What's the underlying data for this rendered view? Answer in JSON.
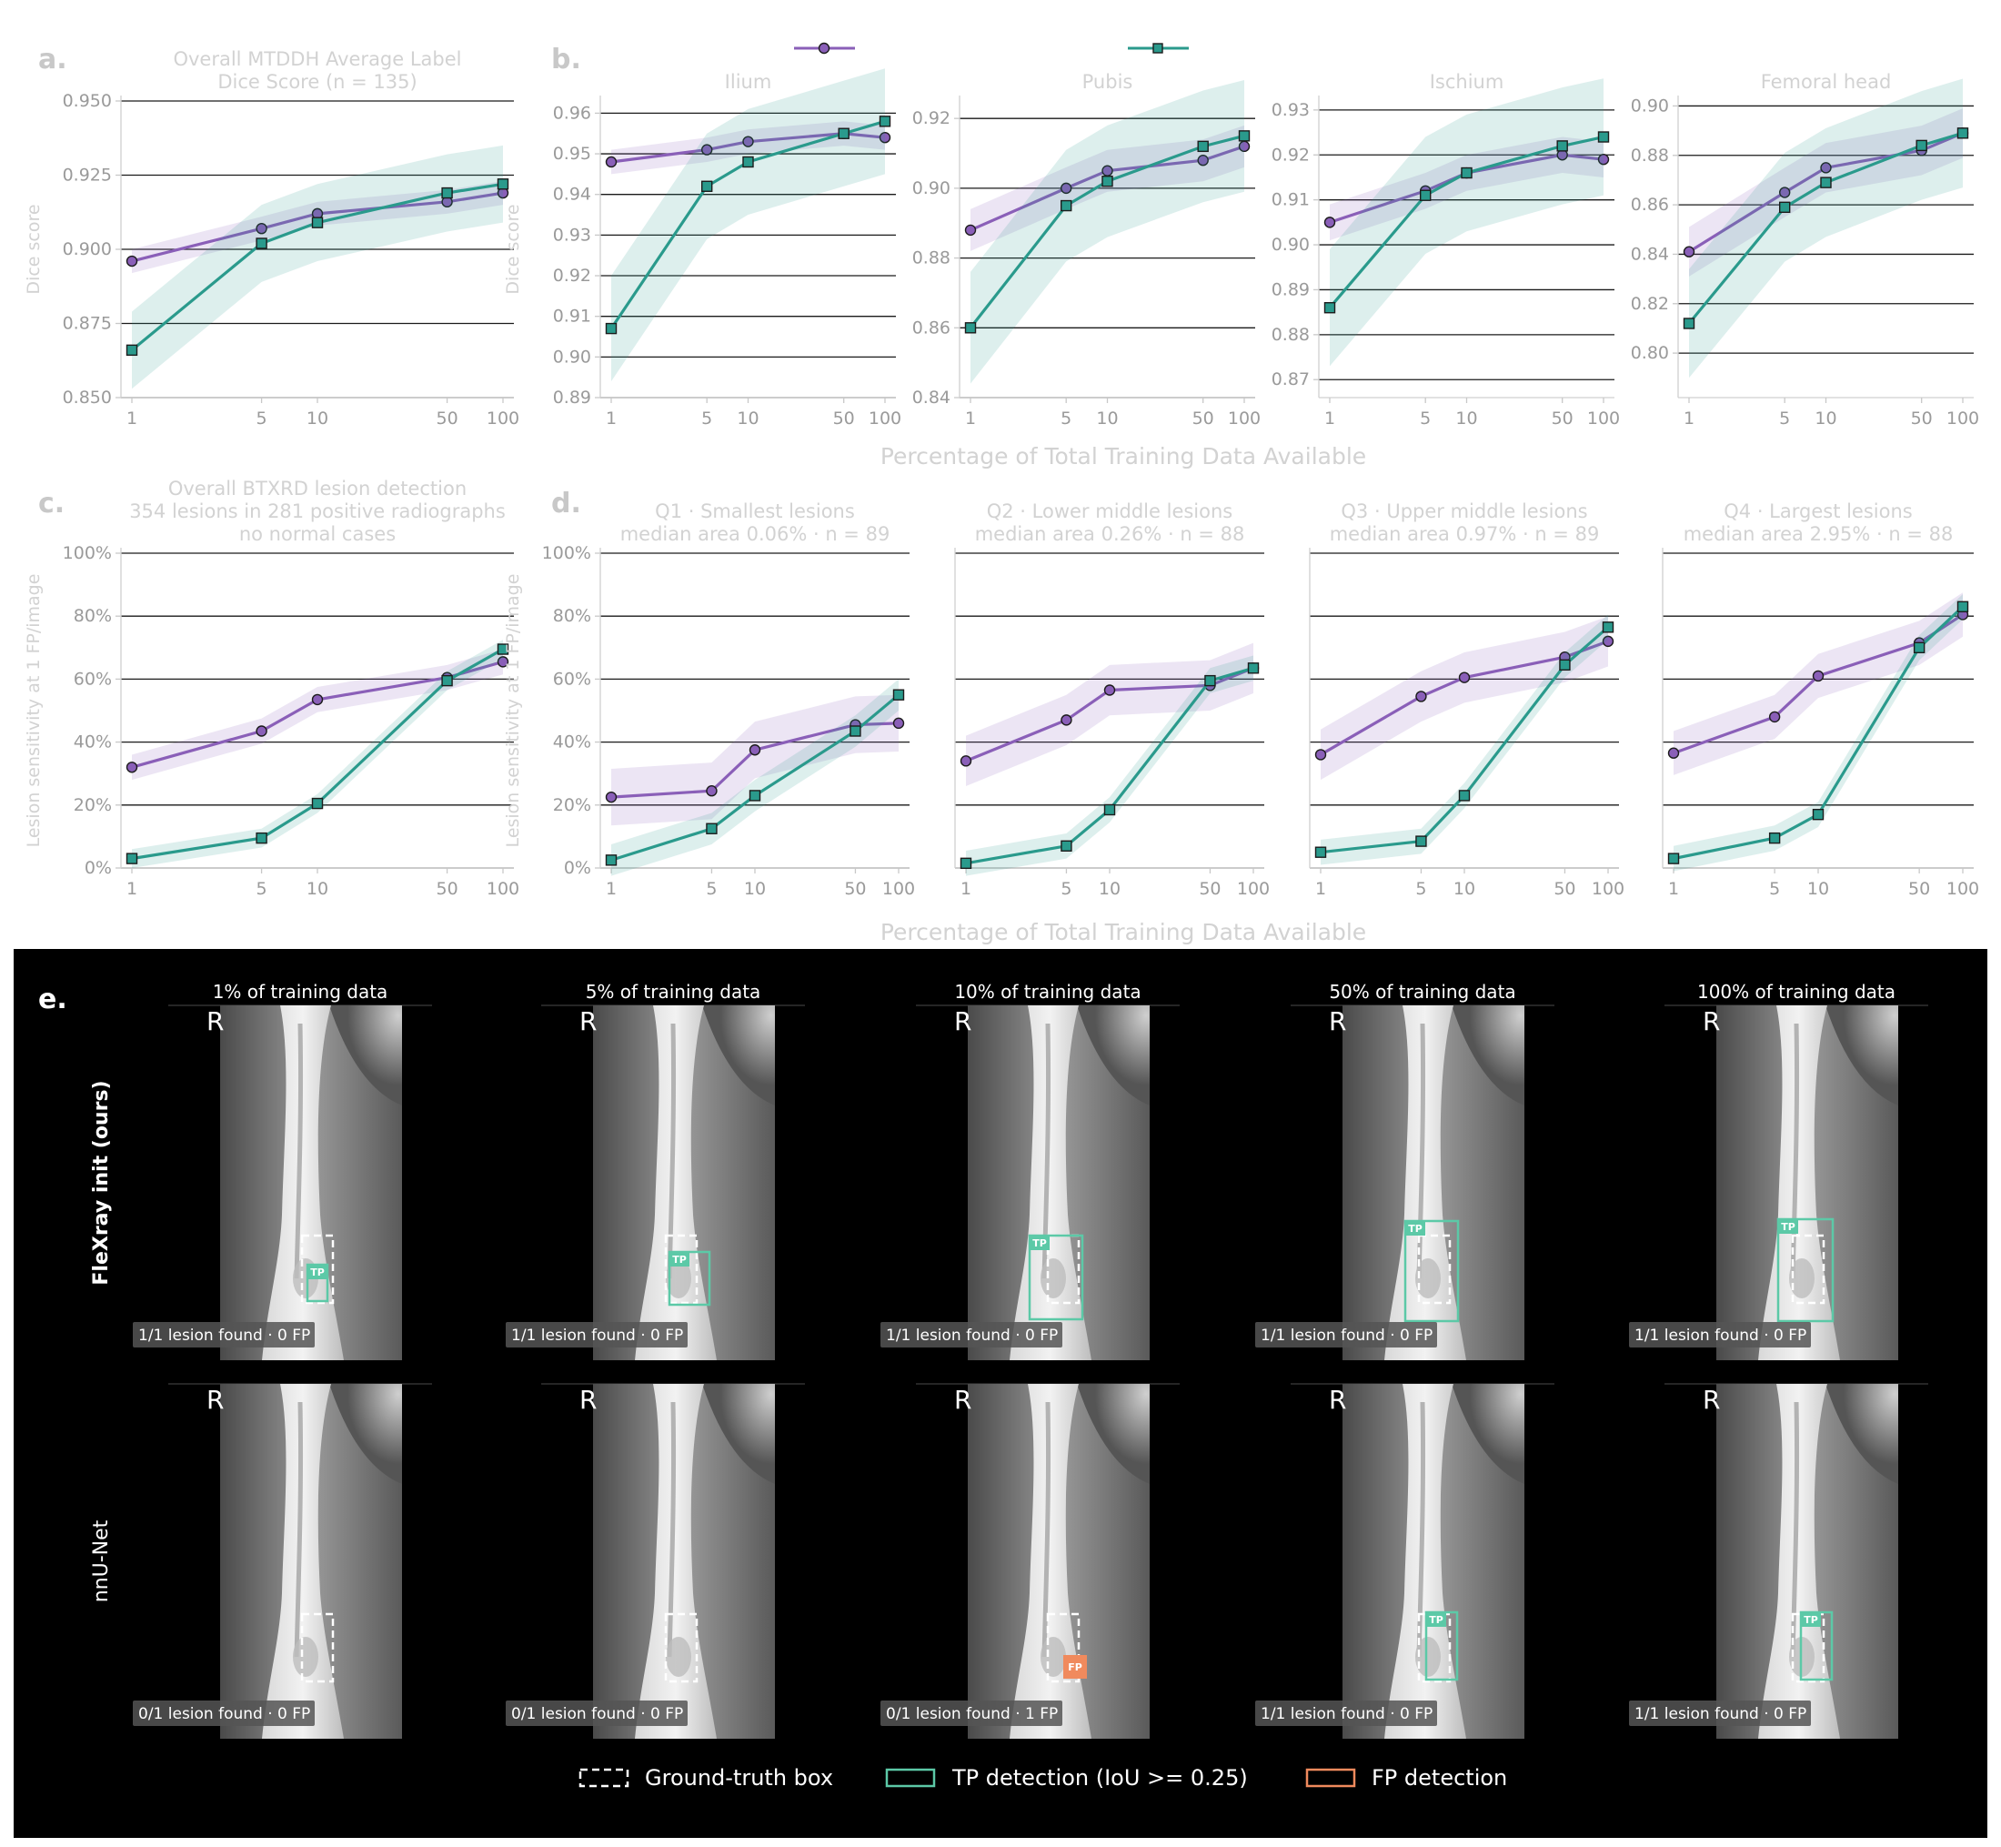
{
  "legend": {
    "series": [
      {
        "key": "flexray",
        "color": "#8a5fb8",
        "marker": "circle"
      },
      {
        "key": "nnunet",
        "color": "#2a9a8c",
        "marker": "square"
      }
    ]
  },
  "panel_letters": {
    "a": "a.",
    "b": "b.",
    "c": "c.",
    "d": "d.",
    "e": "e."
  },
  "x_axis_label_top": "Percentage of Total Training Data Available",
  "x_axis_label_bottom": "Percentage of Total Training Data Available",
  "dice_ylabel": "Dice score",
  "sens_ylabel": "Lesion sensitivity at 1 FP/image",
  "chart_data": [
    {
      "id": "a",
      "type": "line",
      "title": [
        "Overall MTDDH Average Label",
        "Dice Score (n = 135)"
      ],
      "ylabel": "Dice score",
      "x": [
        1,
        5,
        10,
        50,
        100
      ],
      "xscale": "log",
      "ylim": [
        0.85,
        0.95
      ],
      "yticks": [
        0.85,
        0.875,
        0.9,
        0.925,
        0.95
      ],
      "yticklabels": [
        "0.850",
        "0.875",
        "0.900",
        "0.925",
        "0.950"
      ],
      "grid": "y",
      "series": [
        {
          "values": [
            0.896,
            0.907,
            0.912,
            0.916,
            0.919
          ],
          "band": 0.004
        },
        {
          "values": [
            0.866,
            0.902,
            0.909,
            0.919,
            0.922
          ],
          "band": 0.013
        }
      ]
    },
    {
      "id": "b1",
      "type": "line",
      "title": [
        "Ilium"
      ],
      "ylabel": "Dice score",
      "x": [
        1,
        5,
        10,
        50,
        100
      ],
      "xscale": "log",
      "ylim": [
        0.89,
        0.963
      ],
      "yticks": [
        0.89,
        0.9,
        0.91,
        0.92,
        0.93,
        0.94,
        0.95,
        0.96
      ],
      "yticklabels": [
        "0.89",
        "0.90",
        "0.91",
        "0.92",
        "0.93",
        "0.94",
        "0.95",
        "0.96"
      ],
      "grid": "y",
      "series": [
        {
          "values": [
            0.948,
            0.951,
            0.953,
            0.955,
            0.954
          ],
          "band": 0.003
        },
        {
          "values": [
            0.907,
            0.942,
            0.948,
            0.955,
            0.958
          ],
          "band": 0.013
        }
      ]
    },
    {
      "id": "b2",
      "type": "line",
      "title": [
        "Pubis"
      ],
      "ylabel": "",
      "x": [
        1,
        5,
        10,
        50,
        100
      ],
      "xscale": "log",
      "ylim": [
        0.84,
        0.925
      ],
      "yticks": [
        0.84,
        0.86,
        0.88,
        0.9,
        0.92
      ],
      "yticklabels": [
        "0.84",
        "0.86",
        "0.88",
        "0.90",
        "0.92"
      ],
      "grid": "y",
      "series": [
        {
          "values": [
            0.888,
            0.9,
            0.905,
            0.908,
            0.912
          ],
          "band": 0.006
        },
        {
          "values": [
            0.86,
            0.895,
            0.902,
            0.912,
            0.915
          ],
          "band": 0.016
        }
      ]
    },
    {
      "id": "b3",
      "type": "line",
      "title": [
        "Ischium"
      ],
      "ylabel": "",
      "x": [
        1,
        5,
        10,
        50,
        100
      ],
      "xscale": "log",
      "ylim": [
        0.866,
        0.932
      ],
      "yticks": [
        0.87,
        0.88,
        0.89,
        0.9,
        0.91,
        0.92,
        0.93
      ],
      "yticklabels": [
        "0.87",
        "0.88",
        "0.89",
        "0.90",
        "0.91",
        "0.92",
        "0.93"
      ],
      "grid": "y",
      "series": [
        {
          "values": [
            0.905,
            0.912,
            0.916,
            0.92,
            0.919
          ],
          "band": 0.004
        },
        {
          "values": [
            0.886,
            0.911,
            0.916,
            0.922,
            0.924
          ],
          "band": 0.013
        }
      ]
    },
    {
      "id": "b4",
      "type": "line",
      "title": [
        "Femoral head"
      ],
      "ylabel": "",
      "x": [
        1,
        5,
        10,
        50,
        100
      ],
      "xscale": "log",
      "ylim": [
        0.782,
        0.902
      ],
      "yticks": [
        0.8,
        0.82,
        0.84,
        0.86,
        0.88,
        0.9
      ],
      "yticklabels": [
        "0.80",
        "0.82",
        "0.84",
        "0.86",
        "0.88",
        "0.90"
      ],
      "grid": "y",
      "series": [
        {
          "values": [
            0.841,
            0.865,
            0.875,
            0.882,
            0.889
          ],
          "band": 0.01
        },
        {
          "values": [
            0.812,
            0.859,
            0.869,
            0.884,
            0.889
          ],
          "band": 0.022
        }
      ]
    },
    {
      "id": "c",
      "type": "line",
      "title": [
        "Overall BTXRD lesion detection",
        "354 lesions in 281 positive radiographs",
        "no normal cases"
      ],
      "ylabel": "Lesion sensitivity at 1 FP/image",
      "x": [
        1,
        5,
        10,
        50,
        100
      ],
      "xscale": "log",
      "ylim": [
        0,
        100
      ],
      "yticks": [
        0,
        20,
        40,
        60,
        80,
        100
      ],
      "yticklabels": [
        "0%",
        "20%",
        "40%",
        "60%",
        "80%",
        "100%"
      ],
      "grid": "y",
      "series": [
        {
          "values": [
            32,
            43.5,
            53.5,
            60.5,
            65.5
          ],
          "band": 4
        },
        {
          "values": [
            3,
            9.5,
            20.5,
            59.5,
            69.5
          ],
          "band": 3
        }
      ]
    },
    {
      "id": "d1",
      "type": "line",
      "title": [
        "Q1 · Smallest lesions",
        "median area 0.06% · n = 89"
      ],
      "ylabel": "Lesion sensitivity at 1 FP/image",
      "x": [
        1,
        5,
        10,
        50,
        100
      ],
      "xscale": "log",
      "ylim": [
        0,
        100
      ],
      "yticks": [
        0,
        20,
        40,
        60,
        80,
        100
      ],
      "yticklabels": [
        "0%",
        "20%",
        "40%",
        "60%",
        "80%",
        "100%"
      ],
      "grid": "y",
      "series": [
        {
          "values": [
            22.5,
            24.5,
            37.5,
            45.5,
            46
          ],
          "band": 9
        },
        {
          "values": [
            2.5,
            12.5,
            23,
            43.5,
            55
          ],
          "band": 5
        }
      ]
    },
    {
      "id": "d2",
      "type": "line",
      "title": [
        "Q2 · Lower middle lesions",
        "median area 0.26% · n = 88"
      ],
      "ylabel": "",
      "x": [
        1,
        5,
        10,
        50,
        100
      ],
      "xscale": "log",
      "ylim": [
        0,
        100
      ],
      "yticks": [
        0,
        20,
        40,
        60,
        80,
        100
      ],
      "yticklabels": [],
      "grid": "y",
      "series": [
        {
          "values": [
            34,
            47,
            56.5,
            58,
            63.5
          ],
          "band": 8
        },
        {
          "values": [
            1.5,
            7,
            18.5,
            59.5,
            63.5
          ],
          "band": 4
        }
      ]
    },
    {
      "id": "d3",
      "type": "line",
      "title": [
        "Q3 · Upper middle lesions",
        "median area 0.97% · n = 89"
      ],
      "ylabel": "",
      "x": [
        1,
        5,
        10,
        50,
        100
      ],
      "xscale": "log",
      "ylim": [
        0,
        100
      ],
      "yticks": [
        0,
        20,
        40,
        60,
        80,
        100
      ],
      "yticklabels": [],
      "grid": "y",
      "series": [
        {
          "values": [
            36,
            54.5,
            60.5,
            67,
            72
          ],
          "band": 8
        },
        {
          "values": [
            5,
            8.5,
            23,
            64.5,
            76.5
          ],
          "band": 4
        }
      ]
    },
    {
      "id": "d4",
      "type": "line",
      "title": [
        "Q4 · Largest lesions",
        "median area 2.95% · n = 88"
      ],
      "ylabel": "",
      "x": [
        1,
        5,
        10,
        50,
        100
      ],
      "xscale": "log",
      "ylim": [
        0,
        100
      ],
      "yticks": [
        0,
        20,
        40,
        60,
        80,
        100
      ],
      "yticklabels": [],
      "grid": "y",
      "series": [
        {
          "values": [
            36.5,
            48,
            61,
            71.5,
            80.5
          ],
          "band": 7
        },
        {
          "values": [
            3,
            9.5,
            17,
            70,
            83
          ],
          "band": 4
        }
      ]
    }
  ],
  "xray_panel": {
    "columns": [
      "1% of training data",
      "5% of training data",
      "10% of training data",
      "50% of training data",
      "100% of training data"
    ],
    "rows": [
      "FleXray init (ours)",
      "nnU-Net"
    ],
    "side_marker": "R",
    "captions": [
      [
        "1/1 lesion found · 0 FP",
        "1/1 lesion found · 0 FP",
        "1/1 lesion found · 0 FP",
        "1/1 lesion found · 0 FP",
        "1/1 lesion found · 0 FP"
      ],
      [
        "0/1 lesion found · 0 FP",
        "0/1 lesion found · 0 FP",
        "0/1 lesion found · 1 FP",
        "1/1 lesion found · 0 FP",
        "1/1 lesion found · 0 FP"
      ]
    ],
    "tp_label": "TP",
    "fp_label": "FP",
    "legend": [
      "Ground-truth box",
      "TP detection (IoU >= 0.25)",
      "FP detection"
    ],
    "colors": {
      "tp": "#5cc9a7",
      "fp": "#f08a5d",
      "gt": "#ffffff",
      "bg": "#000000"
    }
  }
}
